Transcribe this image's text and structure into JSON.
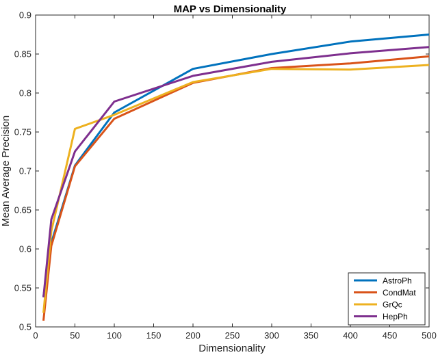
{
  "chart_data": {
    "type": "line",
    "title": "MAP vs Dimensionality",
    "xlabel": "Dimensionality",
    "ylabel": "Mean Average Precision",
    "xlim": [
      0,
      500
    ],
    "ylim": [
      0.5,
      0.9
    ],
    "xticks": [
      0,
      50,
      100,
      150,
      200,
      250,
      300,
      350,
      400,
      450,
      500
    ],
    "yticks": [
      0.5,
      0.55,
      0.6,
      0.65,
      0.7,
      0.75,
      0.8,
      0.85,
      0.9
    ],
    "xtick_labels": [
      "0",
      "50",
      "100",
      "150",
      "200",
      "250",
      "300",
      "350",
      "400",
      "450",
      "500"
    ],
    "ytick_labels": [
      "0.5",
      "0.55",
      "0.6",
      "0.65",
      "0.7",
      "0.75",
      "0.8",
      "0.85",
      "0.9"
    ],
    "grid": false,
    "legend_position": "bottom-right",
    "x": [
      10,
      20,
      50,
      100,
      200,
      300,
      400,
      500
    ],
    "series": [
      {
        "name": "AstroPh",
        "color": "#0072BD",
        "values": [
          0.539,
          0.608,
          0.707,
          0.775,
          0.831,
          0.85,
          0.866,
          0.875
        ]
      },
      {
        "name": "CondMat",
        "color": "#D95319",
        "values": [
          0.508,
          0.604,
          0.706,
          0.767,
          0.813,
          0.832,
          0.838,
          0.847
        ]
      },
      {
        "name": "GrQc",
        "color": "#EDB120",
        "values": [
          0.518,
          0.623,
          0.754,
          0.772,
          0.814,
          0.831,
          0.83,
          0.836
        ]
      },
      {
        "name": "HepPh",
        "color": "#7E2F8E",
        "values": [
          0.538,
          0.638,
          0.725,
          0.789,
          0.822,
          0.84,
          0.851,
          0.859
        ]
      }
    ]
  }
}
